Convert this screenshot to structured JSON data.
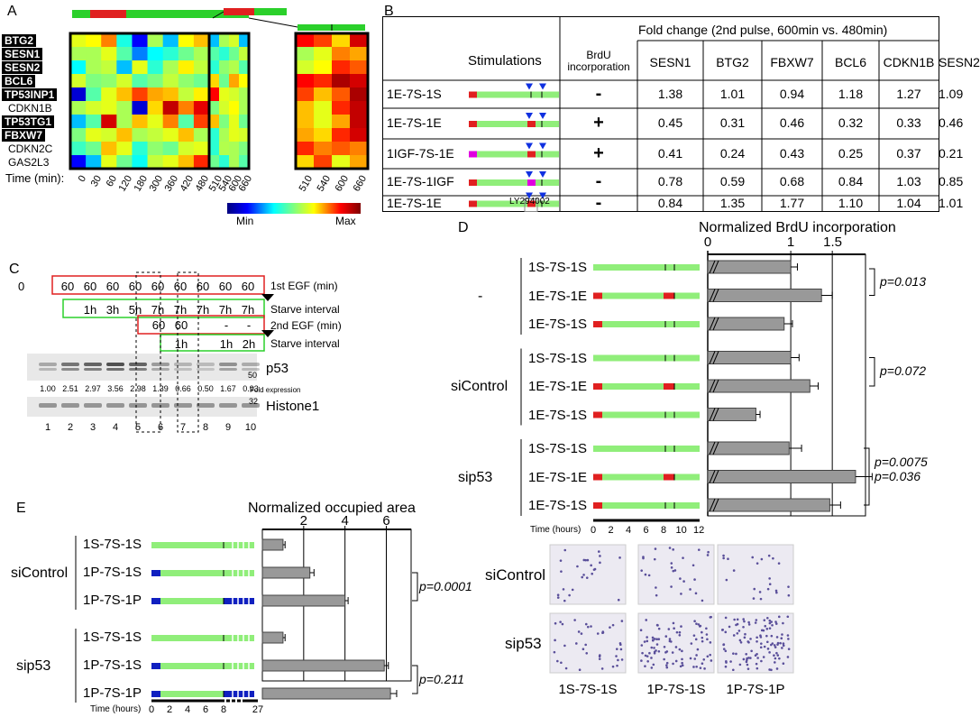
{
  "panelA": {
    "label": "A",
    "genes": [
      {
        "name": "BTG2",
        "boxed": true
      },
      {
        "name": "SESN1",
        "boxed": true
      },
      {
        "name": "SESN2",
        "boxed": true
      },
      {
        "name": "BCL6",
        "boxed": true
      },
      {
        "name": "TP53INP1",
        "boxed": true
      },
      {
        "name": "CDKN1B",
        "boxed": false
      },
      {
        "name": "TP53TG1",
        "boxed": true
      },
      {
        "name": "FBXW7",
        "boxed": true
      },
      {
        "name": "CDKN2C",
        "boxed": false
      },
      {
        "name": "GAS2L3",
        "boxed": false
      }
    ],
    "time_label": "Time (min):",
    "times1": [
      "0",
      "30",
      "60",
      "120",
      "180",
      "300",
      "360",
      "420",
      "480"
    ],
    "times2": [
      "510",
      "540",
      "600",
      "660"
    ],
    "times3": [
      "510",
      "540",
      "600",
      "660"
    ],
    "scale_min": "Min",
    "scale_max": "Max"
  },
  "panelB": {
    "label": "B",
    "header": "Fold change (2nd pulse, 600min vs. 480min)",
    "col_stim": "Stimulations",
    "col_brdu": "BrdU incorporation",
    "columns": [
      "SESN1",
      "BTG2",
      "FBXW7",
      "BCL6",
      "CDKN1B",
      "SESN2"
    ],
    "rows": [
      {
        "name": "1E-7S-1S",
        "brdu": "-",
        "values": [
          "1.38",
          "1.01",
          "0.94",
          "1.18",
          "1.27",
          "1.09"
        ]
      },
      {
        "name": "1E-7S-1E",
        "brdu": "+",
        "values": [
          "0.45",
          "0.31",
          "0.46",
          "0.32",
          "0.33",
          "0.46"
        ]
      },
      {
        "name": "1IGF-7S-1E",
        "brdu": "+",
        "values": [
          "0.41",
          "0.24",
          "0.43",
          "0.25",
          "0.37",
          "0.21"
        ]
      },
      {
        "name": "1E-7S-1IGF",
        "brdu": "-",
        "values": [
          "0.78",
          "0.59",
          "0.68",
          "0.84",
          "1.03",
          "0.85"
        ]
      },
      {
        "name": "1E-7S-1E",
        "brdu": "-",
        "values": [
          "0.84",
          "1.35",
          "1.77",
          "1.10",
          "1.04",
          "1.01"
        ]
      }
    ],
    "inhibitor": "LY294002"
  },
  "panelC": {
    "label": "C",
    "first_egf_values": [
      "60",
      "60",
      "60",
      "60",
      "60",
      "60",
      "60",
      "60",
      "60"
    ],
    "first_egf_label": "1st EGF (min)",
    "zero": "0",
    "starve1": [
      "1h",
      "3h",
      "5h",
      "7h",
      "7h",
      "7h",
      "7h",
      "7h"
    ],
    "starve_label": "Starve interval",
    "second_egf_values": [
      "60",
      "60",
      "-",
      "-"
    ],
    "second_egf_label": "2nd EGF (min)",
    "starve2": [
      "1h",
      "1h",
      "2h"
    ],
    "protein1": "p53",
    "mw1": "50",
    "fold": [
      "1.00",
      "2.51",
      "2.97",
      "3.56",
      "2.98",
      "1.39",
      "0.66",
      "0.50",
      "1.67",
      "0.93"
    ],
    "fold_label": "Fold expression",
    "protein2": "Histone1",
    "mw2": "32",
    "lanes": [
      "1",
      "2",
      "3",
      "4",
      "5",
      "6",
      "7",
      "8",
      "9",
      "10"
    ]
  },
  "panelD": {
    "label": "D",
    "title": "Normalized BrdU incorporation",
    "ticks": [
      "0",
      "1",
      "1.5"
    ],
    "groups": [
      {
        "name": "-",
        "rows": [
          "1S-7S-1S",
          "1E-7S-1E",
          "1E-7S-1S"
        ]
      },
      {
        "name": "siControl",
        "rows": [
          "1S-7S-1S",
          "1E-7S-1E",
          "1E-7S-1S"
        ]
      },
      {
        "name": "sip53",
        "rows": [
          "1S-7S-1S",
          "1E-7S-1E",
          "1E-7S-1S"
        ]
      }
    ],
    "pvalues": [
      "p=0.013",
      "p=0.072",
      "p=0.0075",
      "p=0.036"
    ],
    "time_label": "Time (hours)",
    "time_ticks": [
      "0",
      "2",
      "4",
      "6",
      "8",
      "10",
      "12"
    ],
    "micro_rows": [
      "siControl",
      "sip53"
    ],
    "micro_cols": [
      "1S-7S-1S",
      "1P-7S-1S",
      "1P-7S-1P"
    ]
  },
  "panelE": {
    "label": "E",
    "title": "Normalized occupied area",
    "ticks": [
      "2",
      "4",
      "6"
    ],
    "groups": [
      {
        "name": "siControl",
        "rows": [
          "1S-7S-1S",
          "1P-7S-1S",
          "1P-7S-1P"
        ]
      },
      {
        "name": "sip53",
        "rows": [
          "1S-7S-1S",
          "1P-7S-1S",
          "1P-7S-1P"
        ]
      }
    ],
    "pvalues": [
      "p=0.0001",
      "p=0.211"
    ],
    "time_label": "Time (hours)",
    "time_ticks": [
      "0",
      "2",
      "4",
      "6",
      "8",
      "27"
    ]
  },
  "chart_data": [
    {
      "type": "bar",
      "title": "Normalized BrdU incorporation",
      "categories": [
        "- 1S-7S-1S",
        "- 1E-7S-1E",
        "- 1E-7S-1S",
        "siControl 1S-7S-1S",
        "siControl 1E-7S-1E",
        "siControl 1E-7S-1S",
        "sip53 1S-7S-1S",
        "sip53 1E-7S-1E",
        "sip53 1E-7S-1S"
      ],
      "values": [
        1.0,
        1.37,
        0.92,
        1.0,
        1.23,
        0.58,
        0.98,
        1.78,
        1.47
      ],
      "errors": [
        0.08,
        0.13,
        0.1,
        0.1,
        0.1,
        0.05,
        0.15,
        0.2,
        0.13
      ],
      "orientation": "horizontal",
      "xlim": [
        0,
        1.9
      ]
    },
    {
      "type": "bar",
      "title": "Normalized occupied area",
      "categories": [
        "siControl 1S-7S-1S",
        "siControl 1P-7S-1S",
        "siControl 1P-7S-1P",
        "sip53 1S-7S-1S",
        "sip53 1P-7S-1S",
        "sip53 1P-7S-1P"
      ],
      "values": [
        1.0,
        2.3,
        4.0,
        1.0,
        5.9,
        6.2
      ],
      "errors": [
        0.1,
        0.2,
        0.15,
        0.1,
        0.2,
        0.3
      ],
      "orientation": "horizontal",
      "xlim": [
        0,
        7.2
      ]
    }
  ]
}
